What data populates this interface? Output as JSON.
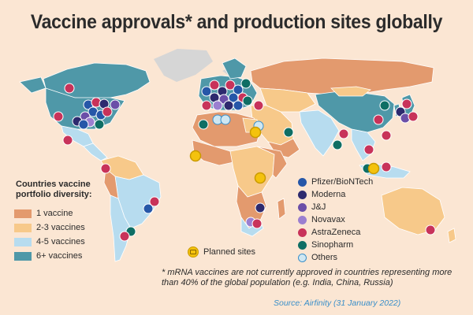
{
  "title": "Vaccine approvals* and production sites globally",
  "legend": {
    "title": "Countries vaccine portfolio diversity:",
    "diversity": [
      {
        "label": "1 vaccine",
        "color": "#e39a6e"
      },
      {
        "label": "2-3 vaccines",
        "color": "#f7c98a"
      },
      {
        "label": "4-5 vaccines",
        "color": "#b7dcef"
      },
      {
        "label": "6+ vaccines",
        "color": "#4f98a8"
      }
    ],
    "manufacturers": [
      {
        "label": "Pfizer/BioNTech",
        "color": "#2657a8"
      },
      {
        "label": "Moderna",
        "color": "#2d2a6e"
      },
      {
        "label": "J&J",
        "color": "#6b4fa8"
      },
      {
        "label": "Novavax",
        "color": "#9b7fd0"
      },
      {
        "label": "AstraZeneca",
        "color": "#c8335a"
      },
      {
        "label": "Sinopharm",
        "color": "#0f6e64"
      },
      {
        "label": "Others",
        "color": "#cfe7f2"
      }
    ],
    "planned_label": "Planned sites"
  },
  "footnote": "* mRNA vaccines are not currently approved in countries representing more than 40% of the global population (e.g. India, China, Russia)",
  "source": "Source: Airfinity (31 January 2022)",
  "colors": {
    "background": "#fbe6d3",
    "no_data": "#d6d6d6",
    "country_border": "#ffffff"
  }
}
